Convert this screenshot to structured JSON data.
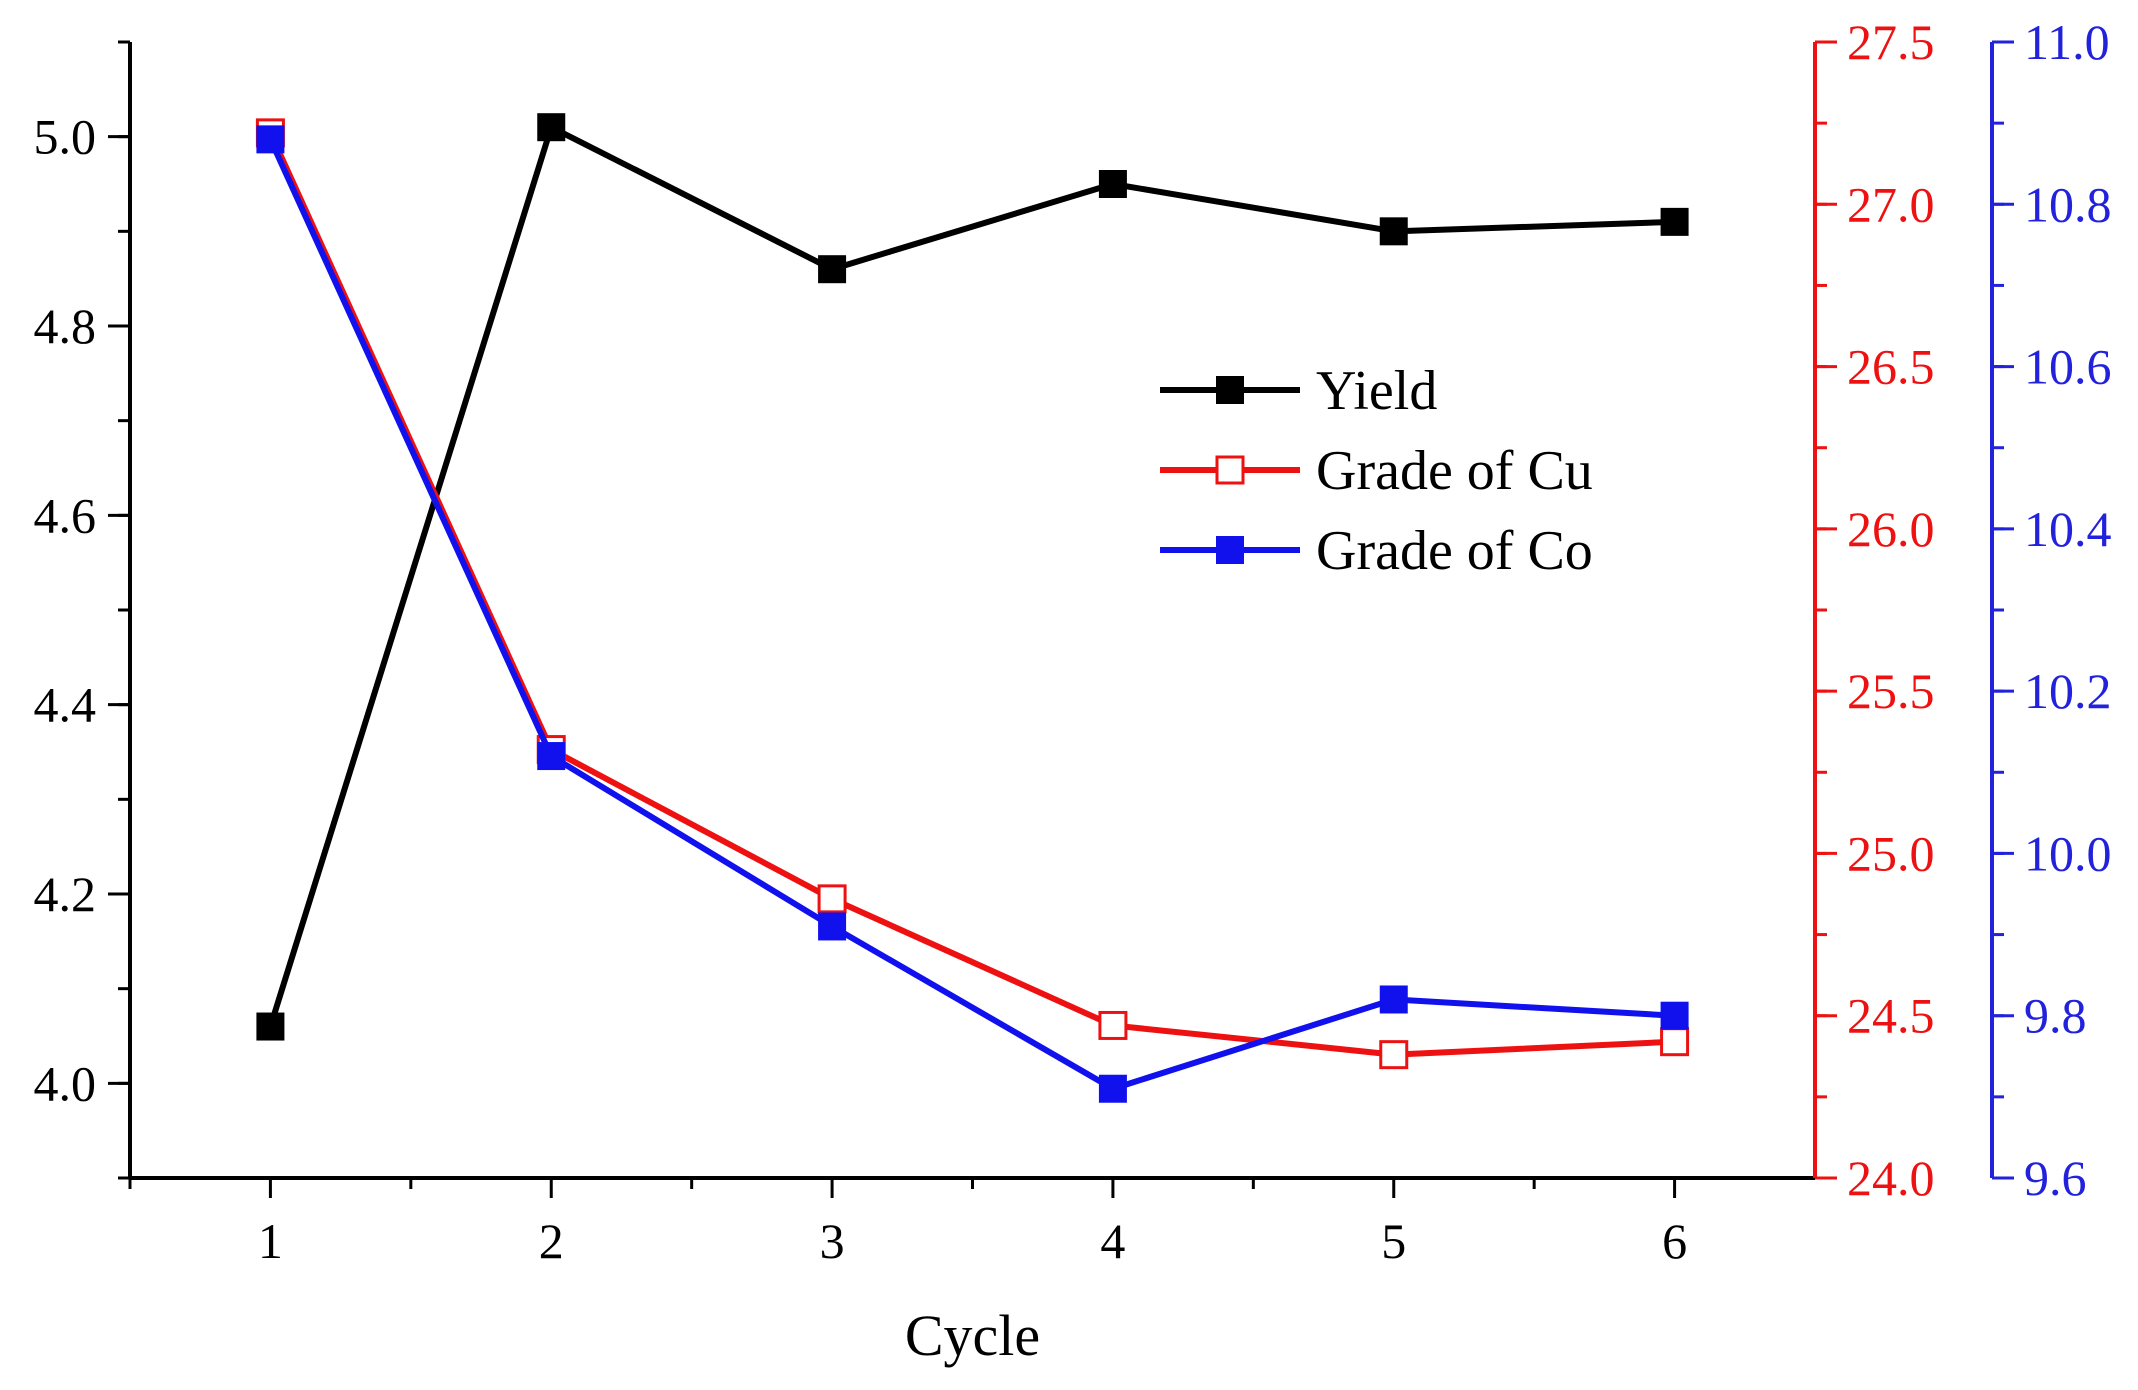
{
  "chart_data": {
    "type": "line",
    "title": "",
    "xlabel": "Cycle",
    "ylabel": "",
    "x": [
      1,
      2,
      3,
      4,
      5,
      6
    ],
    "x_ticks": [
      "1",
      "2",
      "3",
      "4",
      "5",
      "6"
    ],
    "axes": {
      "left": {
        "range": [
          3.9,
          5.1
        ],
        "ticks": [
          "4.0",
          "4.2",
          "4.4",
          "4.6",
          "4.8",
          "5.0"
        ],
        "color": "#000000"
      },
      "right1": {
        "range": [
          24.0,
          27.5
        ],
        "ticks": [
          "24.0",
          "24.5",
          "25.0",
          "25.5",
          "26.0",
          "26.5",
          "27.0",
          "27.5"
        ],
        "color": "#ee1111"
      },
      "right2": {
        "range": [
          9.6,
          11.0
        ],
        "ticks": [
          "9.6",
          "9.8",
          "10.0",
          "10.2",
          "10.4",
          "10.6",
          "10.8",
          "11.0"
        ],
        "color": "#2222dd"
      }
    },
    "series": [
      {
        "name": "Yield",
        "axis": "left",
        "color": "#000000",
        "marker": "filled-square",
        "values": [
          4.06,
          5.01,
          4.86,
          4.95,
          4.9,
          4.91
        ]
      },
      {
        "name": "Grade of Cu",
        "axis": "right1",
        "color": "#ee1111",
        "marker": "open-square",
        "values": [
          27.22,
          25.32,
          24.86,
          24.47,
          24.38,
          24.42
        ]
      },
      {
        "name": "Grade of Co",
        "axis": "right2",
        "color": "#1111ee",
        "marker": "filled-square",
        "values": [
          10.88,
          10.12,
          9.91,
          9.71,
          9.82,
          9.8
        ]
      }
    ],
    "legend": {
      "placement": "upper-middle-right"
    },
    "grid": false
  }
}
